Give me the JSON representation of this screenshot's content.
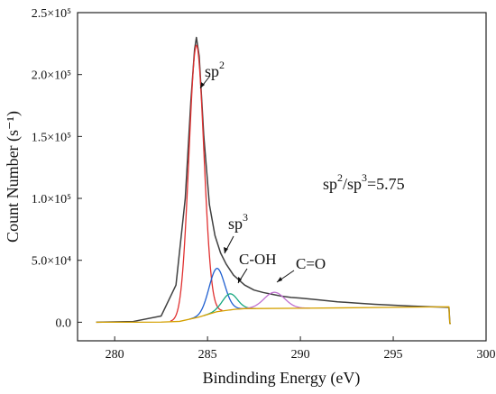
{
  "chart_data": {
    "type": "line",
    "title": "",
    "xlabel": "Bindinding Energy (eV)",
    "ylabel": "Count Number (s⁻¹)",
    "xlim": [
      278,
      300
    ],
    "ylim": [
      -15000,
      250000
    ],
    "x_ticks": [
      280,
      285,
      290,
      295,
      300
    ],
    "y_ticks": [
      {
        "value": 0,
        "label": "0.0"
      },
      {
        "value": 50000,
        "label": "5.0×10⁴"
      },
      {
        "value": 100000,
        "label": "1.0×10⁵"
      },
      {
        "value": 150000,
        "label": "1.5×10⁵"
      },
      {
        "value": 200000,
        "label": "2.0×10⁵"
      },
      {
        "value": 250000,
        "label": "2.5×10⁵"
      }
    ],
    "grid": false,
    "series": [
      {
        "color": "#404040",
        "x": [
          279.0,
          281.0,
          282.5,
          283.3,
          283.8,
          284.1,
          284.3,
          284.4,
          284.55,
          284.8,
          285.1,
          285.4,
          285.7,
          286.0,
          286.4,
          287.0,
          287.5,
          288.0,
          288.5,
          289.0,
          289.5,
          290.0,
          291.0,
          292.0,
          293.0,
          294.0,
          295.0,
          296.0,
          297.0,
          298.0,
          298.05,
          298.1
        ],
        "values": [
          0,
          600,
          5000,
          30000,
          100000,
          178000,
          220000,
          230000,
          215000,
          150000,
          95000,
          70000,
          56000,
          47000,
          38000,
          30000,
          26000,
          24000,
          22500,
          21000,
          20000,
          19500,
          18000,
          16500,
          15500,
          14500,
          13800,
          13000,
          12500,
          12000,
          -1000,
          -1000
        ]
      },
      {
        "name": "sp2",
        "color": "#e03030",
        "peak": {
          "center": 284.4,
          "height": 220000,
          "sigma": 0.4
        }
      },
      {
        "name": "sp3",
        "color": "#1f5fd0",
        "peak": {
          "center": 285.5,
          "height": 35000,
          "sigma": 0.42
        }
      },
      {
        "name": "C-OH",
        "color": "#17a880",
        "peak": {
          "center": 286.2,
          "height": 13000,
          "sigma": 0.4
        }
      },
      {
        "name": "C=O",
        "color": "#c070d0",
        "peak": {
          "center": 288.6,
          "height": 13000,
          "sigma": 0.55
        }
      },
      {
        "color": "#d4a000",
        "x": [
          279.0,
          281.0,
          282.5,
          283.5,
          284.5,
          285.5,
          286.5,
          287.0,
          290.0,
          295.0,
          298.0,
          298.05,
          298.1
        ],
        "values": [
          0,
          0,
          100,
          700,
          4000,
          8500,
          10500,
          11000,
          11300,
          12000,
          12500,
          -1000,
          -1000
        ]
      }
    ],
    "annotations": {
      "sp2": "sp",
      "sp2_sup": "2",
      "sp3": "sp",
      "sp3_sup": "3",
      "coh": "C-OH",
      "co": "C=O",
      "ratio": {
        "a": "sp",
        "a_sup": "2",
        "slash": "/sp",
        "b_sup": "3",
        "value": "=5.75"
      }
    }
  }
}
